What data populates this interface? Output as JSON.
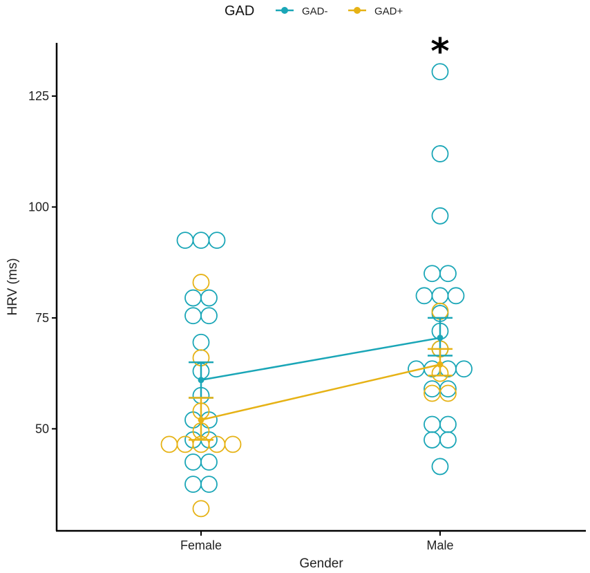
{
  "chart_data": {
    "type": "scatter",
    "title": "",
    "xlabel": "Gender",
    "ylabel": "HRV (ms)",
    "categories": [
      "Female",
      "Male"
    ],
    "ylim": [
      27,
      137
    ],
    "yticks": [
      50,
      75,
      100,
      125
    ],
    "legend": {
      "title": "GAD",
      "position": "top"
    },
    "annotations": [
      {
        "text": "*",
        "category": "Male"
      }
    ],
    "series": [
      {
        "name": "GAD-",
        "color": "#1aa6b7",
        "mean": [
          61,
          70.5
        ],
        "se_low": [
          57,
          66.5
        ],
        "se_high": [
          65,
          75
        ],
        "points": {
          "Female": [
            92.5,
            92.5,
            92.5,
            79.5,
            79.5,
            75.5,
            75.5,
            69.5,
            63,
            57.5,
            52,
            52,
            47.5,
            47.5,
            42.5,
            42.5,
            37.5,
            37.5
          ],
          "Male": [
            130.5,
            112,
            98,
            85,
            85,
            80,
            80,
            80,
            76,
            72,
            68,
            63.5,
            63.5,
            63.5,
            63.5,
            59,
            59,
            51,
            51,
            47.5,
            47.5,
            41.5
          ]
        }
      },
      {
        "name": "GAD+",
        "color": "#e6b215",
        "mean": [
          52,
          64.5
        ],
        "se_low": [
          47.5,
          62
        ],
        "se_high": [
          57,
          68
        ],
        "points": {
          "Female": [
            83,
            66,
            54,
            49.5,
            46.5,
            46.5,
            46.5,
            46.5,
            46.5,
            32
          ],
          "Male": [
            76.5,
            68,
            62.5,
            58,
            58
          ]
        }
      }
    ]
  }
}
